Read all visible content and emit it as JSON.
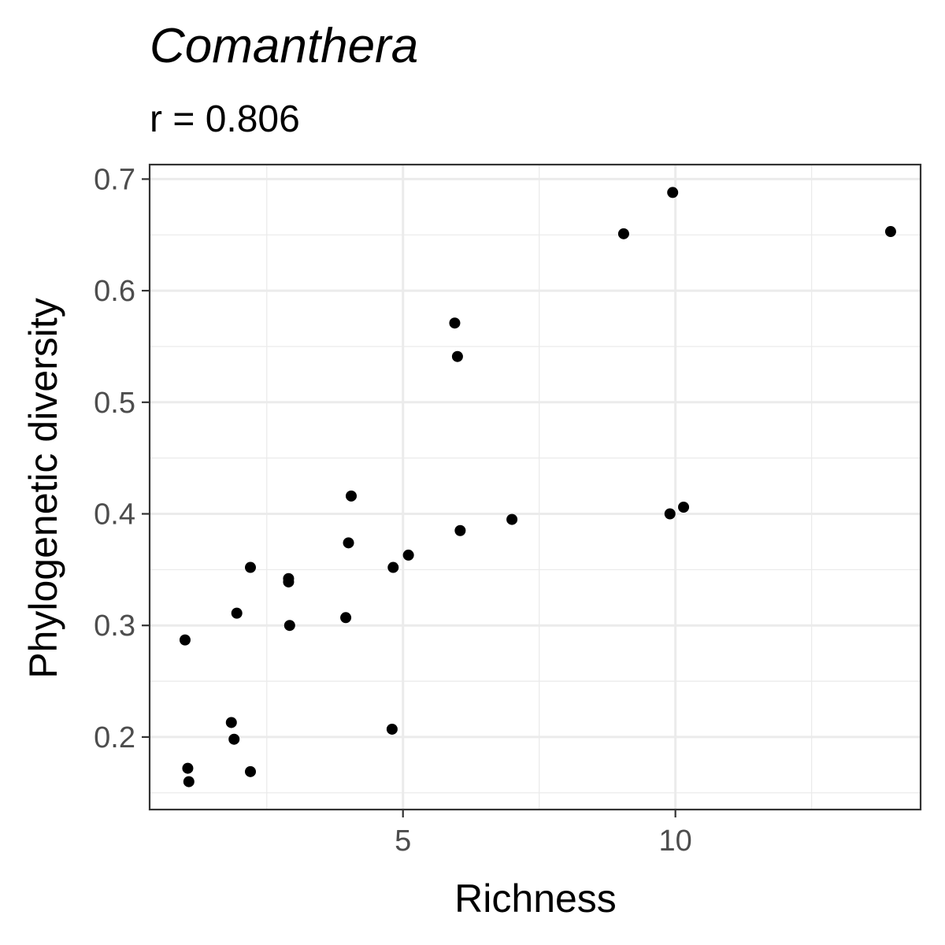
{
  "chart_data": {
    "type": "scatter",
    "title": "Comanthera",
    "subtitle": "r = 0.806",
    "xlabel": "Richness",
    "ylabel": "Phylogenetic diversity",
    "xlim": [
      0.35,
      14.5
    ],
    "ylim": [
      0.135,
      0.713
    ],
    "x_ticks": [
      5,
      10
    ],
    "x_tick_labels": [
      "5",
      "10"
    ],
    "x_minor_ticks": [
      2.5,
      7.5,
      12.5
    ],
    "y_ticks": [
      0.2,
      0.3,
      0.4,
      0.5,
      0.6,
      0.7
    ],
    "y_tick_labels": [
      "0.2",
      "0.3",
      "0.4",
      "0.5",
      "0.6",
      "0.7"
    ],
    "y_minor_ticks": [
      0.15,
      0.25,
      0.35,
      0.45,
      0.55,
      0.65
    ],
    "grid": true,
    "legend": "none",
    "point_color": "#000000",
    "x": [
      1.0,
      1.05,
      1.07,
      1.85,
      1.9,
      1.95,
      2.2,
      2.2,
      2.9,
      2.9,
      2.92,
      3.95,
      4.0,
      4.05,
      4.8,
      4.82,
      5.1,
      5.95,
      6.0,
      6.05,
      7.0,
      9.05,
      9.9,
      9.95,
      10.15,
      13.95
    ],
    "y": [
      0.287,
      0.172,
      0.16,
      0.213,
      0.198,
      0.311,
      0.352,
      0.169,
      0.342,
      0.339,
      0.3,
      0.307,
      0.374,
      0.416,
      0.207,
      0.352,
      0.363,
      0.571,
      0.541,
      0.385,
      0.395,
      0.651,
      0.4,
      0.688,
      0.406,
      0.653
    ]
  }
}
